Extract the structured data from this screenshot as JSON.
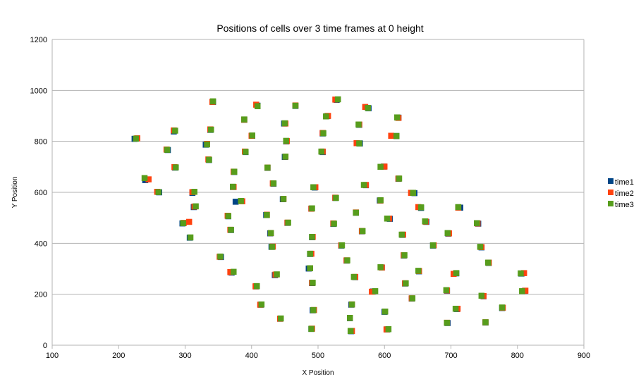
{
  "chart_data": {
    "type": "scatter",
    "title": "Positions of cells over 3 time frames at 0 height",
    "xlabel": "X Position",
    "ylabel": "Y Position",
    "xlim": [
      100,
      900
    ],
    "ylim": [
      0,
      1200
    ],
    "x_ticks": [
      100,
      200,
      300,
      400,
      500,
      600,
      700,
      800,
      900
    ],
    "y_ticks": [
      0,
      200,
      400,
      600,
      800,
      1000,
      1200
    ],
    "grid": "horizontal",
    "legend_position": "right",
    "series": [
      {
        "name": "time1",
        "color": "#004586",
        "points": [
          [
            224,
            810
          ],
          [
            240,
            648
          ],
          [
            261,
            600
          ],
          [
            274,
            766
          ],
          [
            283,
            839
          ],
          [
            285,
            697
          ],
          [
            296,
            478
          ],
          [
            307,
            422
          ],
          [
            311,
            598
          ],
          [
            313,
            542
          ],
          [
            331,
            787
          ],
          [
            336,
            727
          ],
          [
            338,
            845
          ],
          [
            342,
            955
          ],
          [
            354,
            346
          ],
          [
            365,
            506
          ],
          [
            369,
            452
          ],
          [
            370,
            285
          ],
          [
            372,
            621
          ],
          [
            374,
            680
          ],
          [
            376,
            563
          ],
          [
            389,
            885
          ],
          [
            391,
            758
          ],
          [
            401,
            822
          ],
          [
            407,
            231
          ],
          [
            409,
            940
          ],
          [
            414,
            159
          ],
          [
            422,
            511
          ],
          [
            424,
            696
          ],
          [
            428,
            439
          ],
          [
            430,
            386
          ],
          [
            433,
            634
          ],
          [
            435,
            275
          ],
          [
            443,
            104
          ],
          [
            447,
            573
          ],
          [
            449,
            870
          ],
          [
            450,
            739
          ],
          [
            452,
            800
          ],
          [
            454,
            480
          ],
          [
            466,
            939
          ],
          [
            486,
            301
          ],
          [
            488,
            358
          ],
          [
            490,
            64
          ],
          [
            490,
            536
          ],
          [
            491,
            424
          ],
          [
            491,
            244
          ],
          [
            492,
            137
          ],
          [
            495,
            619
          ],
          [
            507,
            831
          ],
          [
            507,
            758
          ],
          [
            514,
            899
          ],
          [
            523,
            476
          ],
          [
            526,
            578
          ],
          [
            528,
            963
          ],
          [
            535,
            391
          ],
          [
            543,
            332
          ],
          [
            548,
            106
          ],
          [
            550,
            55
          ],
          [
            550,
            159
          ],
          [
            556,
            267
          ],
          [
            557,
            520
          ],
          [
            562,
            865
          ],
          [
            563,
            792
          ],
          [
            566,
            447
          ],
          [
            572,
            628
          ],
          [
            576,
            930
          ],
          [
            583,
            211
          ],
          [
            593,
            568
          ],
          [
            596,
            305
          ],
          [
            599,
            701
          ],
          [
            600,
            131
          ],
          [
            604,
            62
          ],
          [
            608,
            496
          ],
          [
            618,
            821
          ],
          [
            621,
            893
          ],
          [
            621,
            653
          ],
          [
            627,
            433
          ],
          [
            629,
            352
          ],
          [
            631,
            242
          ],
          [
            641,
            183
          ],
          [
            645,
            597
          ],
          [
            652,
            290
          ],
          [
            655,
            539
          ],
          [
            663,
            484
          ],
          [
            673,
            391
          ],
          [
            694,
            214
          ],
          [
            695,
            87
          ],
          [
            696,
            438
          ],
          [
            708,
            282
          ],
          [
            709,
            142
          ],
          [
            714,
            540
          ],
          [
            741,
            477
          ],
          [
            746,
            384
          ],
          [
            749,
            192
          ],
          [
            752,
            89
          ],
          [
            757,
            323
          ],
          [
            777,
            146
          ],
          [
            806,
            281
          ],
          [
            811,
            213
          ]
        ]
      },
      {
        "name": "time2",
        "color": "#ff420e",
        "points": [
          [
            228,
            812
          ],
          [
            245,
            651
          ],
          [
            258,
            602
          ],
          [
            272,
            768
          ],
          [
            283,
            843
          ],
          [
            284,
            699
          ],
          [
            298,
            480
          ],
          [
            306,
            484
          ],
          [
            311,
            601
          ],
          [
            314,
            544
          ],
          [
            333,
            790
          ],
          [
            335,
            729
          ],
          [
            338,
            847
          ],
          [
            341,
            955
          ],
          [
            352,
            347
          ],
          [
            364,
            508
          ],
          [
            368,
            453
          ],
          [
            368,
            287
          ],
          [
            373,
            621
          ],
          [
            373,
            681
          ],
          [
            386,
            565
          ],
          [
            389,
            885
          ],
          [
            390,
            760
          ],
          [
            400,
            822
          ],
          [
            406,
            231
          ],
          [
            407,
            944
          ],
          [
            413,
            159
          ],
          [
            423,
            512
          ],
          [
            424,
            697
          ],
          [
            429,
            440
          ],
          [
            432,
            387
          ],
          [
            432,
            635
          ],
          [
            436,
            277
          ],
          [
            443,
            104
          ],
          [
            448,
            574
          ],
          [
            451,
            870
          ],
          [
            451,
            740
          ],
          [
            453,
            801
          ],
          [
            454,
            481
          ],
          [
            466,
            941
          ],
          [
            488,
            302
          ],
          [
            490,
            359
          ],
          [
            491,
            65
          ],
          [
            490,
            536
          ],
          [
            492,
            425
          ],
          [
            491,
            245
          ],
          [
            494,
            138
          ],
          [
            496,
            620
          ],
          [
            507,
            833
          ],
          [
            507,
            760
          ],
          [
            515,
            900
          ],
          [
            523,
            478
          ],
          [
            526,
            579
          ],
          [
            526,
            964
          ],
          [
            535,
            392
          ],
          [
            543,
            333
          ],
          [
            548,
            107
          ],
          [
            551,
            56
          ],
          [
            551,
            160
          ],
          [
            556,
            268
          ],
          [
            557,
            521
          ],
          [
            562,
            866
          ],
          [
            558,
            793
          ],
          [
            566,
            448
          ],
          [
            572,
            629
          ],
          [
            571,
            935
          ],
          [
            581,
            210
          ],
          [
            594,
            568
          ],
          [
            596,
            305
          ],
          [
            600,
            701
          ],
          [
            601,
            132
          ],
          [
            603,
            62
          ],
          [
            607,
            497
          ],
          [
            610,
            822
          ],
          [
            621,
            892
          ],
          [
            621,
            654
          ],
          [
            628,
            434
          ],
          [
            629,
            353
          ],
          [
            631,
            243
          ],
          [
            641,
            184
          ],
          [
            640,
            598
          ],
          [
            652,
            291
          ],
          [
            651,
            542
          ],
          [
            662,
            485
          ],
          [
            674,
            392
          ],
          [
            694,
            215
          ],
          [
            694,
            88
          ],
          [
            697,
            439
          ],
          [
            704,
            280
          ],
          [
            710,
            143
          ],
          [
            711,
            540
          ],
          [
            740,
            478
          ],
          [
            746,
            385
          ],
          [
            749,
            193
          ],
          [
            752,
            90
          ],
          [
            757,
            324
          ],
          [
            778,
            147
          ],
          [
            810,
            283
          ],
          [
            812,
            214
          ]
        ]
      },
      {
        "name": "time3",
        "color": "#579d1c",
        "points": [
          [
            226,
            811
          ],
          [
            239,
            656
          ],
          [
            260,
            601
          ],
          [
            273,
            767
          ],
          [
            285,
            842
          ],
          [
            286,
            698
          ],
          [
            297,
            479
          ],
          [
            308,
            423
          ],
          [
            314,
            602
          ],
          [
            316,
            545
          ],
          [
            333,
            788
          ],
          [
            336,
            728
          ],
          [
            339,
            846
          ],
          [
            342,
            957
          ],
          [
            353,
            348
          ],
          [
            365,
            507
          ],
          [
            369,
            453
          ],
          [
            373,
            288
          ],
          [
            372,
            622
          ],
          [
            374,
            681
          ],
          [
            384,
            566
          ],
          [
            389,
            886
          ],
          [
            391,
            759
          ],
          [
            401,
            823
          ],
          [
            408,
            232
          ],
          [
            409,
            938
          ],
          [
            415,
            160
          ],
          [
            423,
            511
          ],
          [
            424,
            697
          ],
          [
            429,
            440
          ],
          [
            431,
            386
          ],
          [
            433,
            635
          ],
          [
            438,
            278
          ],
          [
            444,
            105
          ],
          [
            448,
            574
          ],
          [
            450,
            871
          ],
          [
            451,
            740
          ],
          [
            452,
            802
          ],
          [
            455,
            481
          ],
          [
            466,
            940
          ],
          [
            488,
            302
          ],
          [
            488,
            359
          ],
          [
            490,
            64
          ],
          [
            491,
            537
          ],
          [
            491,
            425
          ],
          [
            492,
            245
          ],
          [
            493,
            138
          ],
          [
            493,
            620
          ],
          [
            508,
            832
          ],
          [
            505,
            760
          ],
          [
            512,
            898
          ],
          [
            524,
            477
          ],
          [
            527,
            578
          ],
          [
            530,
            965
          ],
          [
            536,
            392
          ],
          [
            544,
            333
          ],
          [
            548,
            107
          ],
          [
            549,
            56
          ],
          [
            551,
            160
          ],
          [
            554,
            268
          ],
          [
            557,
            520
          ],
          [
            561,
            866
          ],
          [
            562,
            792
          ],
          [
            567,
            448
          ],
          [
            569,
            629
          ],
          [
            575,
            931
          ],
          [
            586,
            212
          ],
          [
            594,
            569
          ],
          [
            594,
            306
          ],
          [
            594,
            700
          ],
          [
            601,
            132
          ],
          [
            606,
            63
          ],
          [
            604,
            497
          ],
          [
            618,
            821
          ],
          [
            619,
            894
          ],
          [
            622,
            654
          ],
          [
            626,
            434
          ],
          [
            630,
            353
          ],
          [
            632,
            243
          ],
          [
            642,
            184
          ],
          [
            643,
            598
          ],
          [
            651,
            292
          ],
          [
            655,
            541
          ],
          [
            661,
            486
          ],
          [
            673,
            392
          ],
          [
            693,
            216
          ],
          [
            694,
            88
          ],
          [
            695,
            440
          ],
          [
            708,
            283
          ],
          [
            707,
            143
          ],
          [
            711,
            542
          ],
          [
            739,
            479
          ],
          [
            744,
            386
          ],
          [
            746,
            194
          ],
          [
            752,
            90
          ],
          [
            756,
            324
          ],
          [
            777,
            148
          ],
          [
            807,
            212
          ],
          [
            805,
            282
          ]
        ]
      }
    ]
  }
}
